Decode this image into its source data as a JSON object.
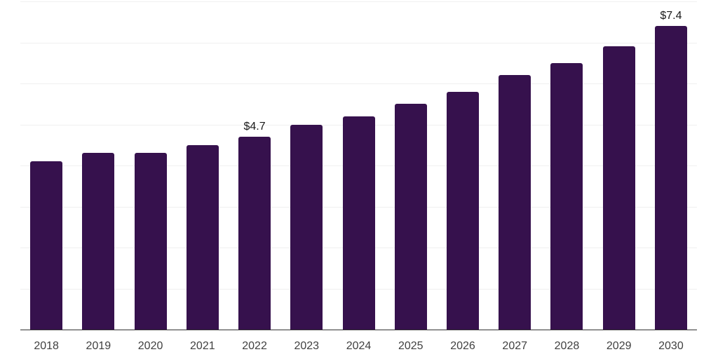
{
  "chart_data": {
    "type": "bar",
    "categories": [
      "2018",
      "2019",
      "2020",
      "2021",
      "2022",
      "2023",
      "2024",
      "2025",
      "2026",
      "2027",
      "2028",
      "2029",
      "2030"
    ],
    "values": [
      4.1,
      4.3,
      4.3,
      4.5,
      4.7,
      5.0,
      5.2,
      5.5,
      5.8,
      6.2,
      6.5,
      6.9,
      7.4
    ],
    "annotations": [
      {
        "category": "2022",
        "text": "$4.7"
      },
      {
        "category": "2030",
        "text": "$7.4"
      }
    ],
    "title": "",
    "xlabel": "",
    "ylabel": "",
    "ylim": [
      0,
      8
    ],
    "grid": "horizontal",
    "gridline_values": [
      1,
      2,
      3,
      4,
      5,
      6,
      7,
      8
    ],
    "legend": "none",
    "colors": {
      "bar": "#36114d",
      "axis_line": "#333333",
      "gridline": "#f0f0f0",
      "tick_label": "#404040",
      "value_label": "#1a1a1a",
      "background": "#ffffff"
    }
  }
}
